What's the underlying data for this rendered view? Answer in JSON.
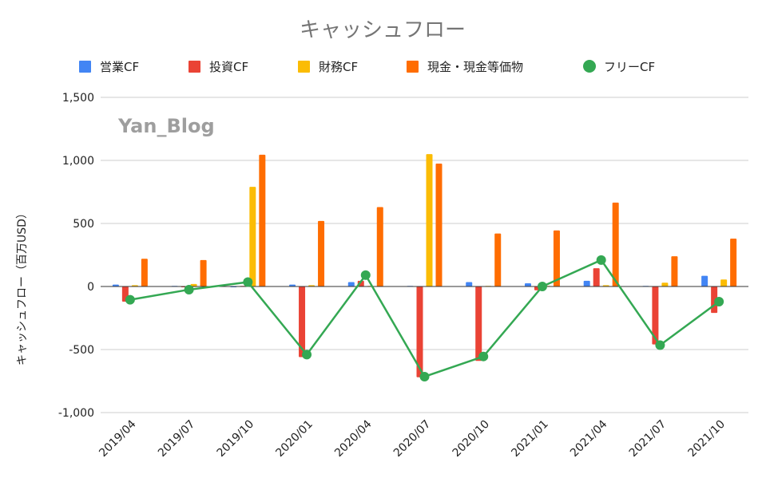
{
  "chart_data": {
    "type": "bar",
    "title": "キャッシュフロー",
    "watermark": "Yan_Blog",
    "xlabel": "",
    "ylabel": "キャッシュフロー（百万USD）",
    "ylim": [
      -1000,
      1500
    ],
    "yticks": [
      1500,
      1000,
      500,
      0,
      -500,
      -1000
    ],
    "ytick_labels": [
      "1,500",
      "1,000",
      "500",
      "0",
      "-500",
      "-1,000"
    ],
    "grid": true,
    "legend_position": "top",
    "categories": [
      "2019/04",
      "2019/07",
      "2019/10",
      "2020/01",
      "2020/04",
      "2020/07",
      "2020/10",
      "2021/01",
      "2021/04",
      "2021/07",
      "2021/10"
    ],
    "series": [
      {
        "name": "営業CF",
        "kind": "bar",
        "color": "#4285f4",
        "values": [
          15,
          5,
          0,
          15,
          35,
          5,
          35,
          25,
          45,
          5,
          85
        ]
      },
      {
        "name": "投資CF",
        "kind": "bar",
        "color": "#ea4335",
        "values": [
          -120,
          -5,
          5,
          -560,
          45,
          -720,
          -590,
          -30,
          145,
          -460,
          -210
        ]
      },
      {
        "name": "財務CF",
        "kind": "bar",
        "color": "#fbbc04",
        "values": [
          10,
          20,
          790,
          10,
          5,
          1050,
          5,
          5,
          10,
          30,
          55
        ]
      },
      {
        "name": "現金・現金等価物",
        "kind": "bar",
        "color": "#ff6d01",
        "values": [
          220,
          210,
          1045,
          520,
          630,
          975,
          420,
          445,
          665,
          240,
          380
        ]
      },
      {
        "name": "フリーCF",
        "kind": "line",
        "color": "#34a853",
        "values": [
          -105,
          -25,
          35,
          -540,
          90,
          -715,
          -555,
          0,
          210,
          -465,
          -120
        ]
      }
    ]
  }
}
